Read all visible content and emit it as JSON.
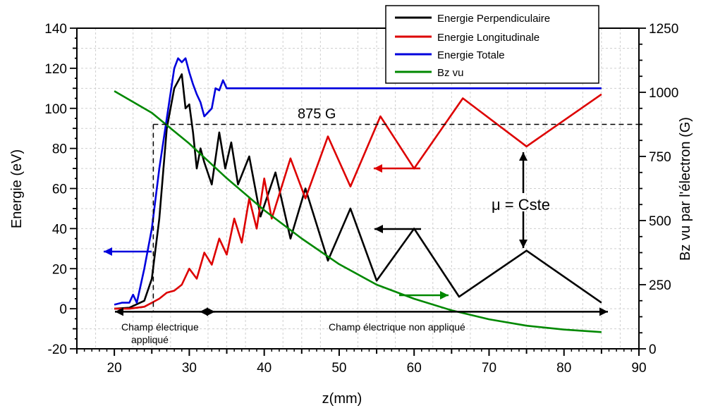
{
  "chart_data": {
    "type": "line",
    "xlabel": "z(mm)",
    "ylabel": "Energie (eV)",
    "y2label": "Bz vu par l'électron (G)",
    "xlim": [
      15,
      90
    ],
    "ylim": [
      -20,
      140
    ],
    "y2lim": [
      0,
      1250
    ],
    "x_ticks": [
      20,
      30,
      40,
      50,
      60,
      70,
      80,
      90
    ],
    "y_ticks": [
      -20,
      0,
      20,
      40,
      60,
      80,
      100,
      120,
      140
    ],
    "y2_ticks": [
      0,
      250,
      500,
      750,
      1000,
      1250
    ],
    "grid": true,
    "legend_position": "top-right",
    "series": [
      {
        "name": "Energie Perpendiculaire",
        "color": "#000000",
        "axis": "left",
        "points": [
          [
            20,
            0
          ],
          [
            22,
            0.5
          ],
          [
            24,
            4
          ],
          [
            25,
            15
          ],
          [
            26,
            45
          ],
          [
            27,
            90
          ],
          [
            28,
            110
          ],
          [
            29,
            117
          ],
          [
            29.5,
            100
          ],
          [
            30,
            102
          ],
          [
            30.5,
            88
          ],
          [
            31,
            70
          ],
          [
            31.5,
            80
          ],
          [
            32,
            73
          ],
          [
            33,
            62
          ],
          [
            34,
            88
          ],
          [
            34.8,
            70
          ],
          [
            35.6,
            83
          ],
          [
            36.5,
            62
          ],
          [
            38,
            76
          ],
          [
            39.5,
            46
          ],
          [
            41.5,
            68
          ],
          [
            43.5,
            35
          ],
          [
            45.5,
            60
          ],
          [
            48.5,
            24
          ],
          [
            51.5,
            50
          ],
          [
            55,
            14
          ],
          [
            60,
            40
          ],
          [
            66,
            6
          ],
          [
            75,
            29
          ],
          [
            85,
            3
          ]
        ]
      },
      {
        "name": "Energie Longitudinale",
        "color": "#dd0000",
        "axis": "left",
        "points": [
          [
            20,
            0
          ],
          [
            22,
            0
          ],
          [
            24,
            1
          ],
          [
            25,
            3
          ],
          [
            26,
            5
          ],
          [
            27,
            8
          ],
          [
            28,
            9
          ],
          [
            29,
            12
          ],
          [
            30,
            20
          ],
          [
            31,
            15
          ],
          [
            32,
            28
          ],
          [
            33,
            22
          ],
          [
            34,
            35
          ],
          [
            35,
            27
          ],
          [
            36,
            45
          ],
          [
            37,
            33
          ],
          [
            38,
            55
          ],
          [
            39,
            40
          ],
          [
            40,
            65
          ],
          [
            41,
            45
          ],
          [
            43.5,
            75
          ],
          [
            45.5,
            55
          ],
          [
            48.5,
            86
          ],
          [
            51.5,
            61
          ],
          [
            55.5,
            96
          ],
          [
            60,
            70
          ],
          [
            66.5,
            105
          ],
          [
            75,
            81
          ],
          [
            85,
            107
          ]
        ]
      },
      {
        "name": "Energie Totale",
        "color": "#0000dd",
        "axis": "left",
        "points": [
          [
            20,
            2
          ],
          [
            21,
            3
          ],
          [
            22,
            3
          ],
          [
            22.5,
            7
          ],
          [
            23,
            3
          ],
          [
            24,
            20
          ],
          [
            25,
            40
          ],
          [
            26,
            70
          ],
          [
            27,
            95
          ],
          [
            28,
            120
          ],
          [
            28.5,
            125
          ],
          [
            29,
            123
          ],
          [
            29.5,
            125
          ],
          [
            30,
            118
          ],
          [
            30.5,
            112
          ],
          [
            31,
            107
          ],
          [
            31.5,
            103
          ],
          [
            32,
            96
          ],
          [
            33,
            100
          ],
          [
            33.5,
            110
          ],
          [
            34,
            109
          ],
          [
            34.5,
            114
          ],
          [
            35,
            110
          ],
          [
            85,
            110
          ]
        ]
      },
      {
        "name": "Bz vu",
        "color": "#008800",
        "axis": "right",
        "points": [
          [
            20,
            1005
          ],
          [
            25,
            920
          ],
          [
            30,
            800
          ],
          [
            35,
            665
          ],
          [
            40,
            540
          ],
          [
            45,
            430
          ],
          [
            50,
            330
          ],
          [
            55,
            250
          ],
          [
            60,
            195
          ],
          [
            65,
            150
          ],
          [
            70,
            115
          ],
          [
            75,
            90
          ],
          [
            80,
            75
          ],
          [
            85,
            65
          ]
        ]
      }
    ],
    "annotations": {
      "level_label": "875 G",
      "mu_label": "μ = Cste",
      "field_applied": "Champ électrique",
      "field_applied_2": "appliqué",
      "field_not_applied": "Champ électrique non appliqué"
    }
  }
}
